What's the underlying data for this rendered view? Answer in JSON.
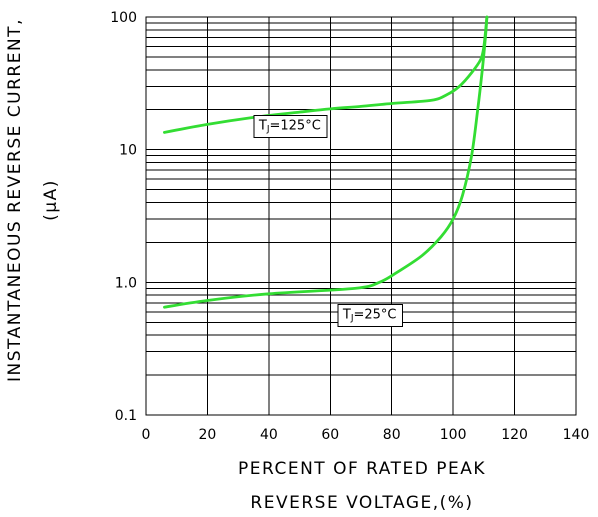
{
  "chart_data": {
    "type": "line",
    "xlabel_lines": [
      "PERCENT OF RATED PEAK",
      "REVERSE VOLTAGE,(%)"
    ],
    "ylabel_lines": [
      "INSTANTANEOUS REVERSE CURRENT,",
      "(μA)"
    ],
    "xlim": [
      0,
      140
    ],
    "ylim": [
      0.1,
      100
    ],
    "y_scale": "log",
    "grid": true,
    "x_ticks": [
      0,
      20,
      40,
      60,
      80,
      100,
      120,
      140
    ],
    "x_tick_labels": [
      "0",
      "20",
      "40",
      "60",
      "80",
      "100",
      "120",
      "140"
    ],
    "y_ticks": [
      0.1,
      1.0,
      10,
      100
    ],
    "y_tick_labels": [
      "0.1",
      "1.0",
      "10",
      "100"
    ],
    "line_color": "#33dd33",
    "series": [
      {
        "x": [
          6,
          20,
          35,
          50,
          60,
          70,
          80,
          93,
          98,
          102,
          106,
          109,
          110,
          111
        ],
        "y": [
          13.5,
          15.5,
          17.5,
          19.2,
          20.3,
          21.2,
          22.3,
          23.6,
          26,
          30,
          38,
          48,
          60,
          100
        ]
      },
      {
        "x": [
          6,
          20,
          40,
          68,
          76,
          82,
          90,
          96,
          100,
          103,
          106,
          108,
          109.5,
          110.5,
          111
        ],
        "y": [
          0.65,
          0.73,
          0.82,
          0.9,
          1.0,
          1.2,
          1.6,
          2.2,
          3.0,
          4.5,
          9,
          20,
          40,
          70,
          100
        ]
      }
    ],
    "annotations": [
      {
        "subscript_base": "T",
        "subscript": "J",
        "text": "=125°C",
        "x": 47,
        "y": 15
      },
      {
        "subscript_base": "T",
        "subscript": "J",
        "text": "=25°C",
        "x": 73,
        "y": 0.56
      }
    ]
  }
}
